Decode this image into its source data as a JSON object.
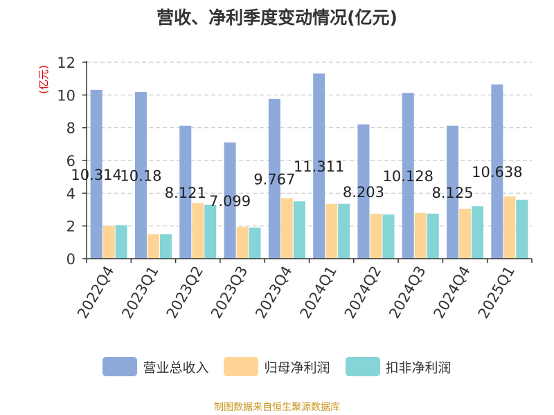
{
  "chart_data": {
    "type": "bar",
    "title": "营收、净利季度变动情况(亿元)",
    "ylabel": "(亿元)",
    "xlabel": "",
    "ylim": [
      0,
      12
    ],
    "yticks": [
      0,
      2,
      4,
      6,
      8,
      10,
      12
    ],
    "grid": true,
    "legend_position": "bottom",
    "categories": [
      "2022Q4",
      "2023Q1",
      "2023Q2",
      "2023Q3",
      "2023Q4",
      "2024Q1",
      "2024Q2",
      "2024Q3",
      "2024Q4",
      "2025Q1"
    ],
    "series": [
      {
        "name": "营业总收入",
        "color": "#8eaadb",
        "values": [
          10.314,
          10.18,
          8.121,
          7.099,
          9.767,
          11.311,
          8.203,
          10.128,
          8.125,
          10.638
        ],
        "labels": [
          "10.314",
          "10.18",
          "8.121",
          "7.099",
          "9.767",
          "11.311",
          "8.203",
          "10.128",
          "8.125",
          "10.638"
        ]
      },
      {
        "name": "归母净利润",
        "color": "#ffd596",
        "values": [
          2.0,
          1.5,
          3.4,
          1.95,
          3.7,
          3.35,
          2.75,
          2.8,
          3.05,
          3.8
        ]
      },
      {
        "name": "扣非净利润",
        "color": "#85d4d6",
        "values": [
          2.05,
          1.5,
          3.3,
          1.9,
          3.5,
          3.35,
          2.7,
          2.75,
          3.2,
          3.6
        ]
      }
    ],
    "source": "制图数据来自恒生聚源数据库"
  }
}
